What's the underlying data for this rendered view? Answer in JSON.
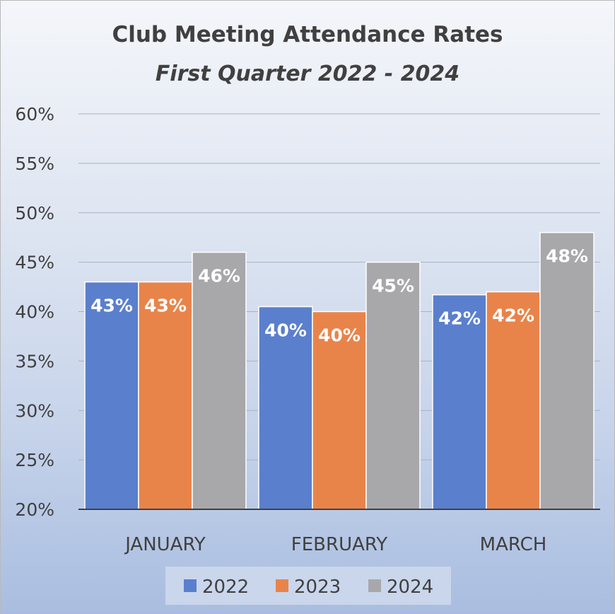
{
  "chart_data": {
    "type": "bar",
    "title": "Club Meeting Attendance Rates",
    "subtitle": "First Quarter 2022 - 2024",
    "categories": [
      "JANUARY",
      "FEBRUARY",
      "MARCH"
    ],
    "series": [
      {
        "name": "2022",
        "color": "#5a7fcd",
        "values": [
          43.0,
          40.5,
          41.7
        ],
        "labels": [
          "43%",
          "40%",
          "42%"
        ]
      },
      {
        "name": "2023",
        "color": "#e8844a",
        "values": [
          43.0,
          40.0,
          42.0
        ],
        "labels": [
          "43%",
          "40%",
          "42%"
        ]
      },
      {
        "name": "2024",
        "color": "#a8a8ab",
        "values": [
          46.0,
          45.0,
          48.0
        ],
        "labels": [
          "46%",
          "45%",
          "48%"
        ]
      }
    ],
    "ylim": [
      20,
      60
    ],
    "yticks": [
      "20%",
      "25%",
      "30%",
      "35%",
      "40%",
      "45%",
      "50%",
      "55%",
      "60%"
    ],
    "ytick_values": [
      20,
      25,
      30,
      35,
      40,
      45,
      50,
      55,
      60
    ],
    "xlabel": "",
    "ylabel": "",
    "grid": true,
    "legend_position": "bottom"
  }
}
